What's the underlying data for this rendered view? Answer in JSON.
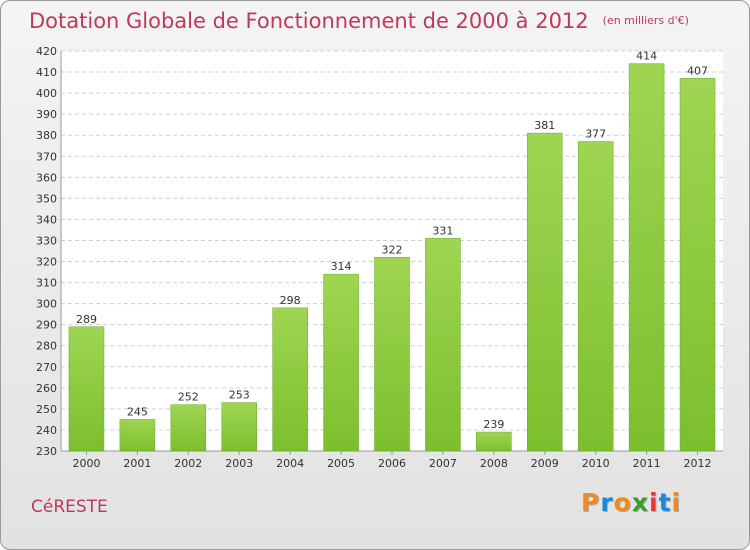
{
  "title": "Dotation Globale de Fonctionnement de 2000 à 2012",
  "subtitle": "(en milliers d'€)",
  "commune": "CéRESTE",
  "logo": {
    "letters": [
      "P",
      "r",
      "o",
      "x",
      "i",
      "t",
      "i"
    ],
    "colors": [
      "#f08a1c",
      "#1e88d8",
      "#f08a1c",
      "#3a9e2e",
      "#e23a3a",
      "#1e88d8",
      "#f08a1c"
    ]
  },
  "colors": {
    "bar": "#7cbf2e",
    "bar_light": "#9fd552",
    "grid": "#cfcfcf",
    "title": "#c0385a"
  },
  "chart_data": {
    "type": "bar",
    "categories": [
      "2000",
      "2001",
      "2002",
      "2003",
      "2004",
      "2005",
      "2006",
      "2007",
      "2008",
      "2009",
      "2010",
      "2011",
      "2012"
    ],
    "values": [
      289,
      245,
      252,
      253,
      298,
      314,
      322,
      331,
      239,
      381,
      377,
      414,
      407
    ],
    "ylim": [
      230,
      420
    ],
    "yticks": [
      230,
      240,
      250,
      260,
      270,
      280,
      290,
      300,
      310,
      320,
      330,
      340,
      350,
      360,
      370,
      380,
      390,
      400,
      410,
      420
    ],
    "grid": true,
    "legend": "none"
  }
}
